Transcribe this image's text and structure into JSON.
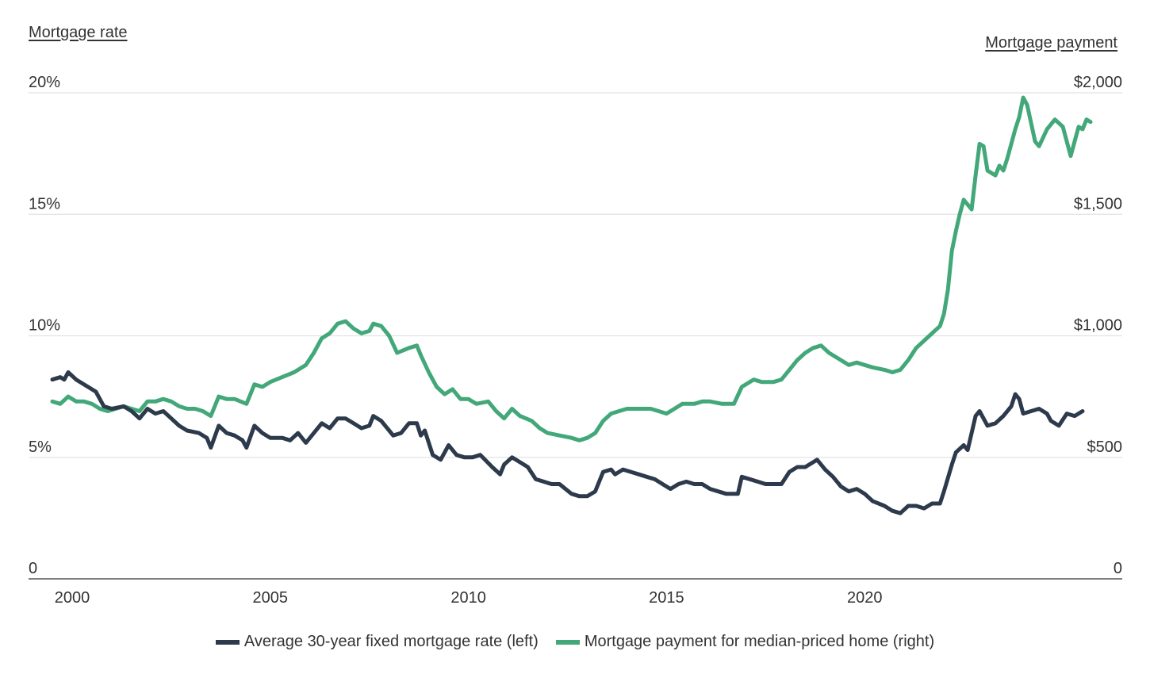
{
  "chart_data": {
    "type": "line",
    "left_axis": {
      "title": "Mortgage rate",
      "ticks": [
        0,
        5,
        10,
        15,
        20
      ],
      "tick_labels": [
        "0",
        "5%",
        "10%",
        "15%",
        "20%"
      ],
      "range": [
        0,
        20
      ]
    },
    "right_axis": {
      "title": "Mortgage payment",
      "ticks": [
        0,
        500,
        1000,
        1500,
        2000
      ],
      "tick_labels": [
        "0",
        "$500",
        "$1,000",
        "$1,500",
        "$2,000"
      ],
      "range": [
        0,
        2000
      ]
    },
    "x_axis": {
      "ticks": [
        2000,
        2005,
        2010,
        2015,
        2020
      ],
      "tick_labels": [
        "2000",
        "2005",
        "2010",
        "2015",
        "2020"
      ],
      "range": [
        1998.9,
        2026.5
      ]
    },
    "grid": true,
    "legend_position": "bottom",
    "series": [
      {
        "name": "Average 30-year fixed mortgage rate (left)",
        "axis": "left",
        "color": "#2d3a4c",
        "points": [
          [
            1999.5,
            8.2
          ],
          [
            1999.7,
            8.3
          ],
          [
            1999.8,
            8.2
          ],
          [
            1999.9,
            8.5
          ],
          [
            2000.1,
            8.2
          ],
          [
            2000.4,
            7.9
          ],
          [
            2000.6,
            7.7
          ],
          [
            2000.8,
            7.1
          ],
          [
            2001.0,
            7.0
          ],
          [
            2001.3,
            7.1
          ],
          [
            2001.5,
            6.9
          ],
          [
            2001.7,
            6.6
          ],
          [
            2001.9,
            7.0
          ],
          [
            2002.1,
            6.8
          ],
          [
            2002.3,
            6.9
          ],
          [
            2002.5,
            6.6
          ],
          [
            2002.7,
            6.3
          ],
          [
            2002.9,
            6.1
          ],
          [
            2003.2,
            6.0
          ],
          [
            2003.4,
            5.8
          ],
          [
            2003.5,
            5.4
          ],
          [
            2003.7,
            6.3
          ],
          [
            2003.9,
            6.0
          ],
          [
            2004.1,
            5.9
          ],
          [
            2004.3,
            5.7
          ],
          [
            2004.4,
            5.4
          ],
          [
            2004.6,
            6.3
          ],
          [
            2004.8,
            6.0
          ],
          [
            2005.0,
            5.8
          ],
          [
            2005.3,
            5.8
          ],
          [
            2005.5,
            5.7
          ],
          [
            2005.7,
            6.0
          ],
          [
            2005.9,
            5.6
          ],
          [
            2006.1,
            6.0
          ],
          [
            2006.3,
            6.4
          ],
          [
            2006.5,
            6.2
          ],
          [
            2006.7,
            6.6
          ],
          [
            2006.9,
            6.6
          ],
          [
            2007.1,
            6.4
          ],
          [
            2007.3,
            6.2
          ],
          [
            2007.5,
            6.3
          ],
          [
            2007.6,
            6.7
          ],
          [
            2007.8,
            6.5
          ],
          [
            2008.0,
            6.1
          ],
          [
            2008.1,
            5.9
          ],
          [
            2008.3,
            6.0
          ],
          [
            2008.5,
            6.4
          ],
          [
            2008.7,
            6.4
          ],
          [
            2008.8,
            5.9
          ],
          [
            2008.9,
            6.1
          ],
          [
            2009.1,
            5.1
          ],
          [
            2009.3,
            4.9
          ],
          [
            2009.5,
            5.5
          ],
          [
            2009.7,
            5.1
          ],
          [
            2009.9,
            5.0
          ],
          [
            2010.1,
            5.0
          ],
          [
            2010.3,
            5.1
          ],
          [
            2010.6,
            4.6
          ],
          [
            2010.8,
            4.3
          ],
          [
            2010.9,
            4.7
          ],
          [
            2011.1,
            5.0
          ],
          [
            2011.3,
            4.8
          ],
          [
            2011.5,
            4.6
          ],
          [
            2011.7,
            4.1
          ],
          [
            2011.9,
            4.0
          ],
          [
            2012.1,
            3.9
          ],
          [
            2012.3,
            3.9
          ],
          [
            2012.6,
            3.5
          ],
          [
            2012.8,
            3.4
          ],
          [
            2013.0,
            3.4
          ],
          [
            2013.2,
            3.6
          ],
          [
            2013.4,
            4.4
          ],
          [
            2013.6,
            4.5
          ],
          [
            2013.7,
            4.3
          ],
          [
            2013.9,
            4.5
          ],
          [
            2014.1,
            4.4
          ],
          [
            2014.3,
            4.3
          ],
          [
            2014.5,
            4.2
          ],
          [
            2014.7,
            4.1
          ],
          [
            2014.9,
            3.9
          ],
          [
            2015.1,
            3.7
          ],
          [
            2015.3,
            3.9
          ],
          [
            2015.5,
            4.0
          ],
          [
            2015.7,
            3.9
          ],
          [
            2015.9,
            3.9
          ],
          [
            2016.1,
            3.7
          ],
          [
            2016.3,
            3.6
          ],
          [
            2016.5,
            3.5
          ],
          [
            2016.8,
            3.5
          ],
          [
            2016.9,
            4.2
          ],
          [
            2017.1,
            4.1
          ],
          [
            2017.3,
            4.0
          ],
          [
            2017.5,
            3.9
          ],
          [
            2017.7,
            3.9
          ],
          [
            2017.9,
            3.9
          ],
          [
            2018.1,
            4.4
          ],
          [
            2018.3,
            4.6
          ],
          [
            2018.5,
            4.6
          ],
          [
            2018.7,
            4.8
          ],
          [
            2018.8,
            4.9
          ],
          [
            2019.0,
            4.5
          ],
          [
            2019.2,
            4.2
          ],
          [
            2019.4,
            3.8
          ],
          [
            2019.6,
            3.6
          ],
          [
            2019.8,
            3.7
          ],
          [
            2020.0,
            3.5
          ],
          [
            2020.2,
            3.2
          ],
          [
            2020.5,
            3.0
          ],
          [
            2020.7,
            2.8
          ],
          [
            2020.9,
            2.7
          ],
          [
            2021.1,
            3.0
          ],
          [
            2021.3,
            3.0
          ],
          [
            2021.5,
            2.9
          ],
          [
            2021.7,
            3.1
          ],
          [
            2021.9,
            3.1
          ],
          [
            2022.0,
            3.6
          ],
          [
            2022.2,
            4.7
          ],
          [
            2022.3,
            5.2
          ],
          [
            2022.5,
            5.5
          ],
          [
            2022.6,
            5.3
          ],
          [
            2022.8,
            6.7
          ],
          [
            2022.9,
            6.9
          ],
          [
            2023.1,
            6.3
          ],
          [
            2023.3,
            6.4
          ],
          [
            2023.5,
            6.7
          ],
          [
            2023.7,
            7.1
          ],
          [
            2023.8,
            7.6
          ],
          [
            2023.9,
            7.4
          ],
          [
            2024.0,
            6.8
          ],
          [
            2024.2,
            6.9
          ],
          [
            2024.4,
            7.0
          ],
          [
            2024.6,
            6.8
          ],
          [
            2024.7,
            6.5
          ],
          [
            2024.9,
            6.3
          ],
          [
            2025.1,
            6.8
          ],
          [
            2025.3,
            6.7
          ],
          [
            2025.5,
            6.9
          ]
        ]
      },
      {
        "name": "Mortgage payment for median-priced home (right)",
        "axis": "right",
        "color": "#43a879",
        "points": [
          [
            1999.5,
            730
          ],
          [
            1999.7,
            720
          ],
          [
            1999.9,
            750
          ],
          [
            2000.1,
            730
          ],
          [
            2000.3,
            730
          ],
          [
            2000.5,
            720
          ],
          [
            2000.7,
            700
          ],
          [
            2000.9,
            690
          ],
          [
            2001.1,
            700
          ],
          [
            2001.3,
            710
          ],
          [
            2001.5,
            700
          ],
          [
            2001.7,
            690
          ],
          [
            2001.9,
            730
          ],
          [
            2002.1,
            730
          ],
          [
            2002.3,
            740
          ],
          [
            2002.5,
            730
          ],
          [
            2002.7,
            710
          ],
          [
            2002.9,
            700
          ],
          [
            2003.1,
            700
          ],
          [
            2003.3,
            690
          ],
          [
            2003.5,
            670
          ],
          [
            2003.7,
            750
          ],
          [
            2003.9,
            740
          ],
          [
            2004.1,
            740
          ],
          [
            2004.4,
            720
          ],
          [
            2004.6,
            800
          ],
          [
            2004.8,
            790
          ],
          [
            2005.0,
            810
          ],
          [
            2005.3,
            830
          ],
          [
            2005.6,
            850
          ],
          [
            2005.9,
            880
          ],
          [
            2006.1,
            930
          ],
          [
            2006.3,
            990
          ],
          [
            2006.5,
            1010
          ],
          [
            2006.7,
            1050
          ],
          [
            2006.9,
            1060
          ],
          [
            2007.1,
            1030
          ],
          [
            2007.3,
            1010
          ],
          [
            2007.5,
            1020
          ],
          [
            2007.6,
            1050
          ],
          [
            2007.8,
            1040
          ],
          [
            2008.0,
            1000
          ],
          [
            2008.2,
            930
          ],
          [
            2008.5,
            950
          ],
          [
            2008.7,
            960
          ],
          [
            2008.8,
            920
          ],
          [
            2009.0,
            850
          ],
          [
            2009.2,
            790
          ],
          [
            2009.4,
            760
          ],
          [
            2009.6,
            780
          ],
          [
            2009.8,
            740
          ],
          [
            2010.0,
            740
          ],
          [
            2010.2,
            720
          ],
          [
            2010.5,
            730
          ],
          [
            2010.7,
            690
          ],
          [
            2010.9,
            660
          ],
          [
            2011.1,
            700
          ],
          [
            2011.3,
            670
          ],
          [
            2011.6,
            650
          ],
          [
            2011.8,
            620
          ],
          [
            2012.0,
            600
          ],
          [
            2012.3,
            590
          ],
          [
            2012.6,
            580
          ],
          [
            2012.8,
            570
          ],
          [
            2013.0,
            580
          ],
          [
            2013.2,
            600
          ],
          [
            2013.4,
            650
          ],
          [
            2013.6,
            680
          ],
          [
            2013.8,
            690
          ],
          [
            2014.0,
            700
          ],
          [
            2014.3,
            700
          ],
          [
            2014.6,
            700
          ],
          [
            2014.8,
            690
          ],
          [
            2015.0,
            680
          ],
          [
            2015.2,
            700
          ],
          [
            2015.4,
            720
          ],
          [
            2015.7,
            720
          ],
          [
            2015.9,
            730
          ],
          [
            2016.1,
            730
          ],
          [
            2016.4,
            720
          ],
          [
            2016.7,
            720
          ],
          [
            2016.9,
            790
          ],
          [
            2017.2,
            820
          ],
          [
            2017.4,
            810
          ],
          [
            2017.7,
            810
          ],
          [
            2017.9,
            820
          ],
          [
            2018.1,
            860
          ],
          [
            2018.3,
            900
          ],
          [
            2018.5,
            930
          ],
          [
            2018.7,
            950
          ],
          [
            2018.9,
            960
          ],
          [
            2019.1,
            930
          ],
          [
            2019.3,
            910
          ],
          [
            2019.6,
            880
          ],
          [
            2019.8,
            890
          ],
          [
            2020.0,
            880
          ],
          [
            2020.2,
            870
          ],
          [
            2020.5,
            860
          ],
          [
            2020.7,
            850
          ],
          [
            2020.9,
            860
          ],
          [
            2021.1,
            900
          ],
          [
            2021.3,
            950
          ],
          [
            2021.5,
            980
          ],
          [
            2021.7,
            1010
          ],
          [
            2021.9,
            1040
          ],
          [
            2022.0,
            1090
          ],
          [
            2022.1,
            1190
          ],
          [
            2022.2,
            1350
          ],
          [
            2022.3,
            1430
          ],
          [
            2022.4,
            1500
          ],
          [
            2022.5,
            1560
          ],
          [
            2022.7,
            1520
          ],
          [
            2022.8,
            1660
          ],
          [
            2022.9,
            1790
          ],
          [
            2023.0,
            1780
          ],
          [
            2023.1,
            1680
          ],
          [
            2023.3,
            1660
          ],
          [
            2023.4,
            1700
          ],
          [
            2023.5,
            1680
          ],
          [
            2023.6,
            1730
          ],
          [
            2023.8,
            1850
          ],
          [
            2023.9,
            1900
          ],
          [
            2024.0,
            1980
          ],
          [
            2024.1,
            1950
          ],
          [
            2024.3,
            1800
          ],
          [
            2024.4,
            1780
          ],
          [
            2024.6,
            1850
          ],
          [
            2024.8,
            1890
          ],
          [
            2025.0,
            1860
          ],
          [
            2025.2,
            1740
          ],
          [
            2025.4,
            1860
          ],
          [
            2025.5,
            1850
          ],
          [
            2025.6,
            1890
          ],
          [
            2025.7,
            1880
          ]
        ]
      }
    ]
  }
}
